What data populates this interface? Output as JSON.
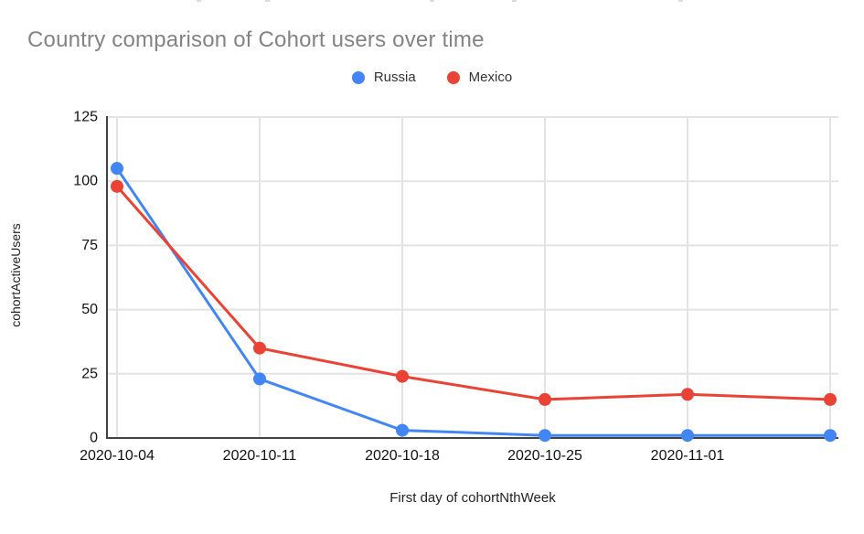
{
  "header": {
    "title": "Country comparison of Cohort users over time"
  },
  "legend": [
    {
      "label": "Russia",
      "color": "#4285f4"
    },
    {
      "label": "Mexico",
      "color": "#ea4335"
    }
  ],
  "chart_data": {
    "type": "line",
    "title": "Country comparison of Cohort users over time",
    "xlabel": "First day of cohortNthWeek",
    "ylabel": "cohortActiveUsers",
    "x": [
      "2020-10-04",
      "2020-10-11",
      "2020-10-18",
      "2020-10-25",
      "2020-11-01",
      ""
    ],
    "x_tick_labels": [
      "2020-10-04",
      "2020-10-11",
      "2020-10-18",
      "2020-10-25",
      "2020-11-01",
      ""
    ],
    "series": [
      {
        "name": "Russia",
        "color": "#4285f4",
        "values": [
          105,
          23,
          3,
          1,
          1,
          1
        ]
      },
      {
        "name": "Mexico",
        "color": "#ea4335",
        "values": [
          98,
          35,
          24,
          15,
          17,
          15
        ]
      }
    ],
    "ylim": [
      0,
      125
    ],
    "yticks": [
      0,
      25,
      50,
      75,
      100,
      125
    ],
    "grid": true,
    "legend_position": "top-center"
  },
  "colors": {
    "title_text": "#838383",
    "axis_line": "#424242",
    "gridline": "#e3e3e3",
    "tick_text": "#111111",
    "background": "#ffffff"
  }
}
